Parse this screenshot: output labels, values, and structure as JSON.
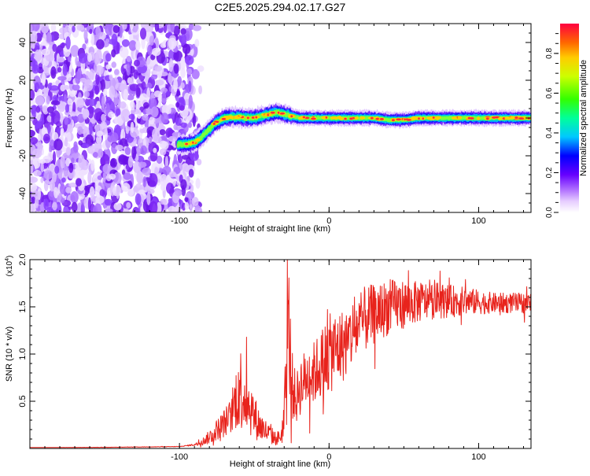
{
  "title": "C2E5.2025.294.02.17.G27",
  "chart_data": [
    {
      "type": "heatmap",
      "name": "spectrogram",
      "xlabel": "Height of straight line (km)",
      "ylabel": "Frequency (Hz)",
      "xlim": [
        -200,
        135
      ],
      "ylim": [
        -50,
        50
      ],
      "xticks": [
        -100,
        0,
        100
      ],
      "xtick_labels": [
        "-100",
        "0",
        "100"
      ],
      "yticks": [
        -40,
        -20,
        0,
        20,
        40
      ],
      "ytick_labels": [
        "-40",
        "-20",
        "0",
        "20",
        "40"
      ],
      "noise_region_x": [
        -200,
        -92
      ],
      "ridge": {
        "x": [
          -101,
          -95,
          -90,
          -85,
          -80,
          -75,
          -70,
          -65,
          -60,
          -55,
          -50,
          -45,
          -40,
          -35,
          -30,
          -25,
          -20,
          -10,
          0,
          10,
          20,
          30,
          40,
          50,
          60,
          70,
          80,
          90,
          100,
          110,
          120,
          135
        ],
        "freq": [
          -14,
          -14,
          -13,
          -10,
          -6,
          -2,
          0,
          0.5,
          0.5,
          0,
          0,
          1,
          2,
          3,
          2,
          1,
          0,
          0,
          0,
          0,
          0,
          0,
          -1,
          -1,
          0,
          0,
          0,
          0,
          0,
          0,
          0,
          0
        ]
      },
      "colorbar": {
        "label": "Normalized spectral amplitude",
        "range": [
          0,
          0.95
        ],
        "ticks": [
          0.0,
          0.2,
          0.4,
          0.6,
          0.8
        ],
        "tick_labels": [
          "0.0",
          "0.2",
          "0.4",
          "0.6",
          "0.8"
        ]
      }
    },
    {
      "type": "line",
      "name": "snr",
      "xlabel": "Height of straight line (km)",
      "ylabel": "SNR (10 * v/v)",
      "multiplier_label": "(x10",
      "multiplier_exp": "4",
      "multiplier_close": ")",
      "color": "#e8231c",
      "xlim": [
        -200,
        135
      ],
      "ylim": [
        0,
        20000
      ],
      "xticks": [
        -100,
        0,
        100
      ],
      "xtick_labels": [
        "-100",
        "0",
        "100"
      ],
      "yticks": [
        5000,
        10000,
        15000,
        20000
      ],
      "ytick_labels": [
        "0.5",
        "1.0",
        "1.5",
        "2.0"
      ],
      "x": [
        -200,
        -150,
        -100,
        -90,
        -85,
        -80,
        -75,
        -70,
        -65,
        -62,
        -60,
        -58,
        -55,
        -52,
        -50,
        -48,
        -45,
        -40,
        -35,
        -32,
        -30,
        -28,
        -27,
        -25,
        -22,
        -20,
        -15,
        -10,
        -5,
        0,
        5,
        10,
        15,
        20,
        25,
        30,
        40,
        50,
        60,
        70,
        80,
        90,
        100,
        110,
        120,
        135
      ],
      "y": [
        100,
        120,
        200,
        400,
        700,
        1200,
        2000,
        2700,
        3500,
        5500,
        6800,
        6000,
        5000,
        4200,
        3500,
        2800,
        2200,
        1500,
        1000,
        1400,
        3000,
        9000,
        13000,
        7000,
        5000,
        6500,
        7500,
        8000,
        9000,
        10000,
        10500,
        11000,
        12000,
        13000,
        13800,
        14200,
        15000,
        15300,
        15500,
        15700,
        15600,
        15600,
        15500,
        15400,
        15400,
        15400
      ],
      "noise_amp": [
        0,
        0.08,
        0.1,
        0.2,
        0.35,
        0.45,
        0.4,
        0.4,
        0.4,
        0.45,
        0.5,
        0.5,
        0.45,
        0.5,
        0.5,
        0.5,
        0.5,
        0.5,
        0.5,
        0.5,
        0.6,
        0.5,
        0.4,
        0.4,
        0.35,
        0.35,
        0.3,
        0.3,
        0.3,
        0.3,
        0.28,
        0.25,
        0.22,
        0.2,
        0.18,
        0.16,
        0.14,
        0.12,
        0.1,
        0.09,
        0.08,
        0.07,
        0.06,
        0.05,
        0.05,
        0.05
      ]
    }
  ]
}
